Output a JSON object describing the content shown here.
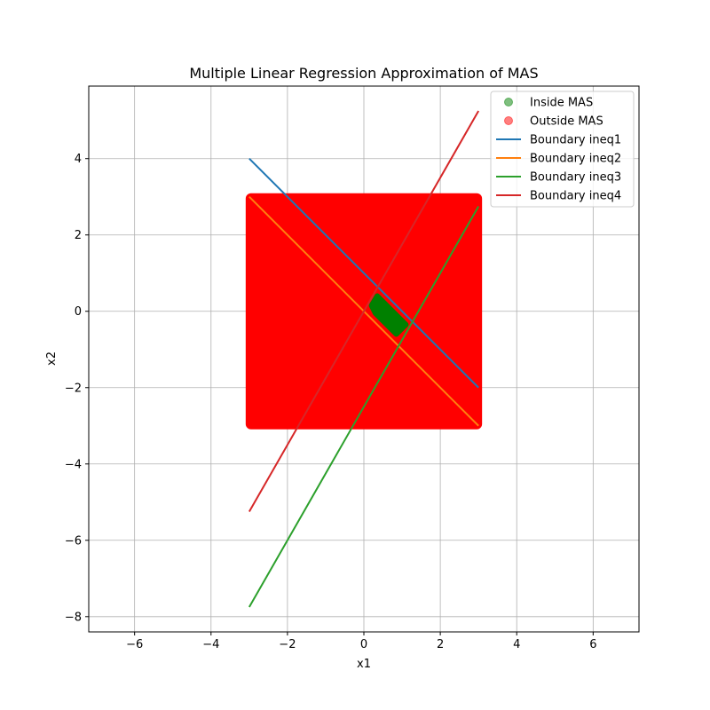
{
  "chart_data": {
    "type": "scatter",
    "title": "Multiple Linear Regression Approximation of MAS",
    "xlabel": "x1",
    "ylabel": "x2",
    "xlim": [
      -7.2,
      7.2
    ],
    "ylim": [
      -8.4,
      5.9
    ],
    "xticks": [
      -6,
      -4,
      -2,
      0,
      2,
      4,
      6
    ],
    "yticks": [
      -8,
      -6,
      -4,
      -2,
      0,
      2,
      4
    ],
    "grid": true,
    "legend_placement": "top-right",
    "regions": [
      {
        "name": "Outside MAS",
        "kind": "scatter-fill",
        "color": "#ff0000",
        "x_range": [
          -3,
          3
        ],
        "y_range": [
          -3,
          3
        ]
      },
      {
        "name": "Inside MAS",
        "kind": "scatter-fill",
        "color": "#008000",
        "polygon": [
          [
            0.35,
            0.4
          ],
          [
            0.6,
            0.15
          ],
          [
            1.1,
            -0.35
          ],
          [
            0.85,
            -0.6
          ],
          [
            0.3,
            -0.05
          ],
          [
            0.2,
            0.15
          ]
        ]
      }
    ],
    "series": [
      {
        "name": "Boundary ineq1",
        "color": "#1f77b4",
        "x": [
          -3,
          3
        ],
        "y": [
          4,
          -2
        ]
      },
      {
        "name": "Boundary ineq2",
        "color": "#ff7f0e",
        "x": [
          -3,
          3
        ],
        "y": [
          3,
          -3
        ]
      },
      {
        "name": "Boundary ineq3",
        "color": "#2ca02c",
        "x": [
          -3,
          3
        ],
        "y": [
          -7.75,
          2.75
        ]
      },
      {
        "name": "Boundary ineq4",
        "color": "#d62728",
        "x": [
          -3,
          3
        ],
        "y": [
          -5.25,
          5.25
        ]
      }
    ],
    "legend": [
      {
        "label": "Inside MAS",
        "marker": "circle",
        "color": "#008000",
        "alpha": 0.5
      },
      {
        "label": "Outside MAS",
        "marker": "circle",
        "color": "#ff0000",
        "alpha": 0.5
      },
      {
        "label": "Boundary ineq1",
        "marker": "line",
        "color": "#1f77b4"
      },
      {
        "label": "Boundary ineq2",
        "marker": "line",
        "color": "#ff7f0e"
      },
      {
        "label": "Boundary ineq3",
        "marker": "line",
        "color": "#2ca02c"
      },
      {
        "label": "Boundary ineq4",
        "marker": "line",
        "color": "#d62728"
      }
    ]
  }
}
